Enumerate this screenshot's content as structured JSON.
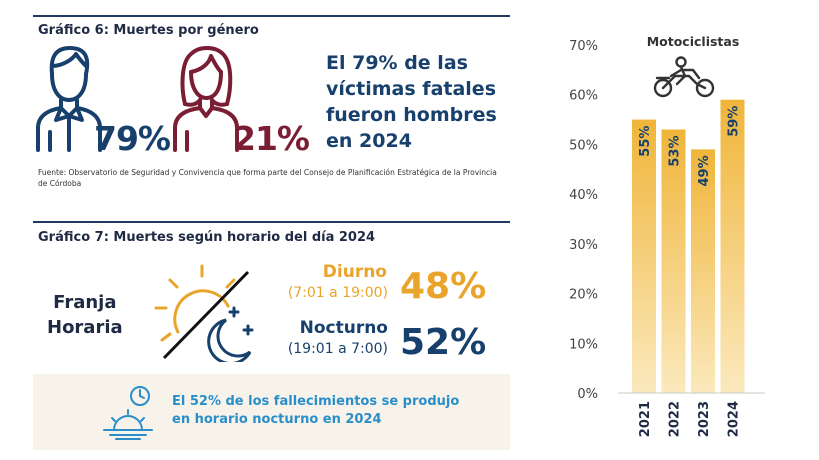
{
  "gender_section": {
    "title": "Gráfico 6: Muertes por género",
    "male_pct": "79%",
    "female_pct": "21%",
    "headline": "El 79% de las víctimas fatales fueron hombres en 2024",
    "source": "Fuente: Observatorio de Seguridad y Convivencia que forma parte del Consejo de Planificación Estratégica de la Provincia de Córdoba",
    "male_icon": "man-icon",
    "female_icon": "woman-icon"
  },
  "time_section": {
    "title": "Gráfico 7: Muertes según horario del día 2024",
    "label_line1": "Franja",
    "label_line2": "Horaria",
    "day": {
      "label": "Diurno",
      "range": "(7:01 a 19:00)",
      "pct": "48%"
    },
    "night": {
      "label": "Nocturno",
      "range": "(19:01 a 7:00)",
      "pct": "52%"
    },
    "callout_line1": "El 52% de los fallecimientos se produjo",
    "callout_line2": "en horario nocturno en 2024",
    "sun_icon": "sun-icon",
    "moon_icon": "moon-icon",
    "clock_icon": "clock-sunset-icon"
  },
  "colors": {
    "navy": "#17406d",
    "maroon": "#7a1e33",
    "gold": "#e9a52b",
    "light_blue": "#2a8fc9"
  },
  "chart_data": {
    "type": "bar",
    "title": "Motociclistas",
    "icon": "motorcycle-icon",
    "categories": [
      "2021",
      "2022",
      "2023",
      "2024"
    ],
    "values": [
      55,
      53,
      49,
      59
    ],
    "value_labels": [
      "55%",
      "53%",
      "49%",
      "59%"
    ],
    "ylim": [
      0,
      70
    ],
    "yticks": [
      "0%",
      "10%",
      "20%",
      "30%",
      "40%",
      "50%",
      "60%",
      "70%"
    ],
    "xlabel": "",
    "ylabel": "",
    "grid": false
  }
}
